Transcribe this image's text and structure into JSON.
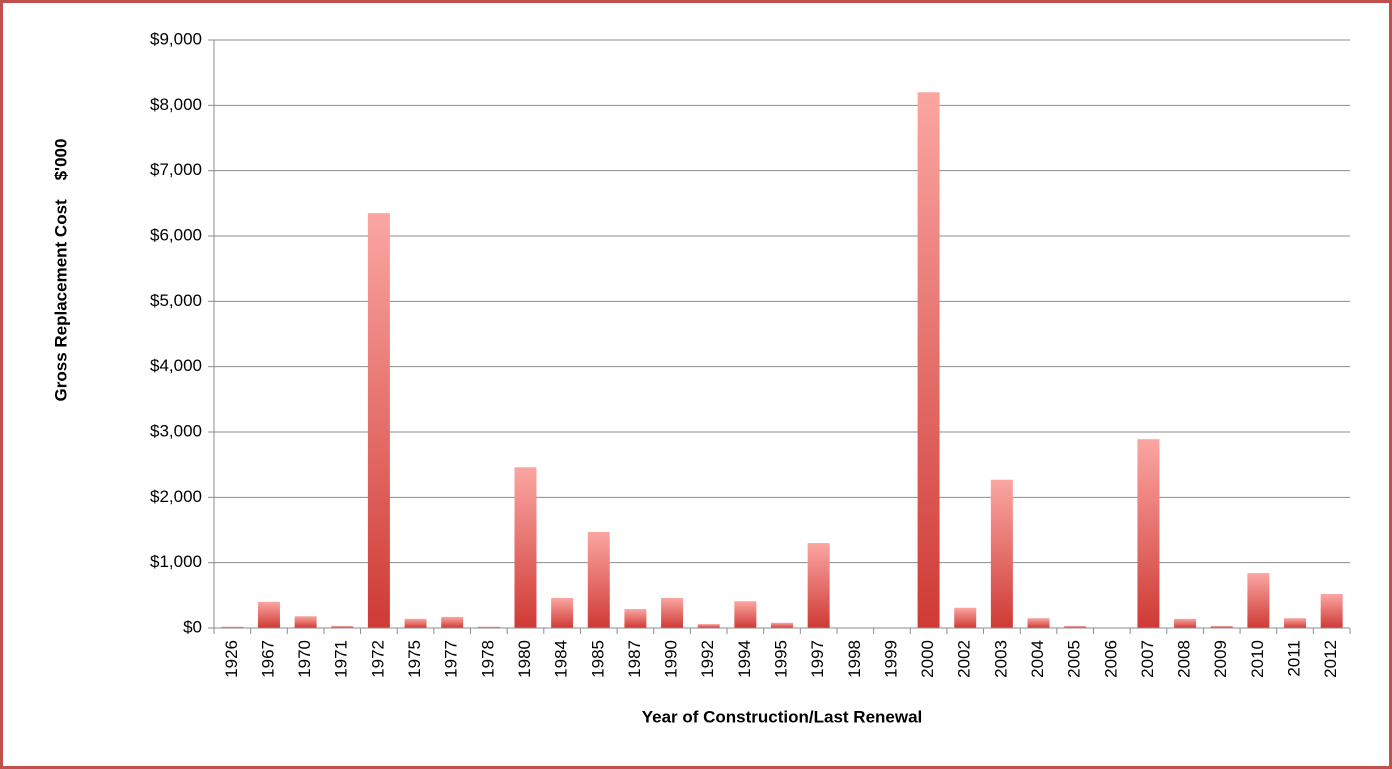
{
  "chart_data": {
    "type": "bar",
    "x_label": "Year of Construction/Last Renewal",
    "y_label": "Gross Replacement Cost    $'000",
    "categories": [
      "1926",
      "1967",
      "1970",
      "1971",
      "1972",
      "1975",
      "1977",
      "1978",
      "1980",
      "1984",
      "1985",
      "1987",
      "1990",
      "1992",
      "1994",
      "1995",
      "1997",
      "1998",
      "1999",
      "2000",
      "2002",
      "2003",
      "2004",
      "2005",
      "2006",
      "2007",
      "2008",
      "2009",
      "2010",
      "2011",
      "2012"
    ],
    "values": [
      20,
      400,
      180,
      30,
      6350,
      140,
      170,
      20,
      2460,
      460,
      1470,
      290,
      460,
      60,
      410,
      80,
      1300,
      0,
      0,
      8200,
      310,
      2270,
      150,
      30,
      0,
      2890,
      140,
      30,
      840,
      150,
      520
    ],
    "gradient": [
      "#fba6a2",
      "#cf3a35"
    ],
    "ylim": [
      0,
      9000
    ],
    "yticks": [
      {
        "value": 0,
        "label": "$0"
      },
      {
        "value": 1000,
        "label": "$1,000"
      },
      {
        "value": 2000,
        "label": "$2,000"
      },
      {
        "value": 3000,
        "label": "$3,000"
      },
      {
        "value": 4000,
        "label": "$4,000"
      },
      {
        "value": 5000,
        "label": "$5,000"
      },
      {
        "value": 6000,
        "label": "$6,000"
      },
      {
        "value": 7000,
        "label": "$7,000"
      },
      {
        "value": 8000,
        "label": "$8,000"
      },
      {
        "value": 9000,
        "label": "$9,000"
      }
    ],
    "grid": true
  }
}
